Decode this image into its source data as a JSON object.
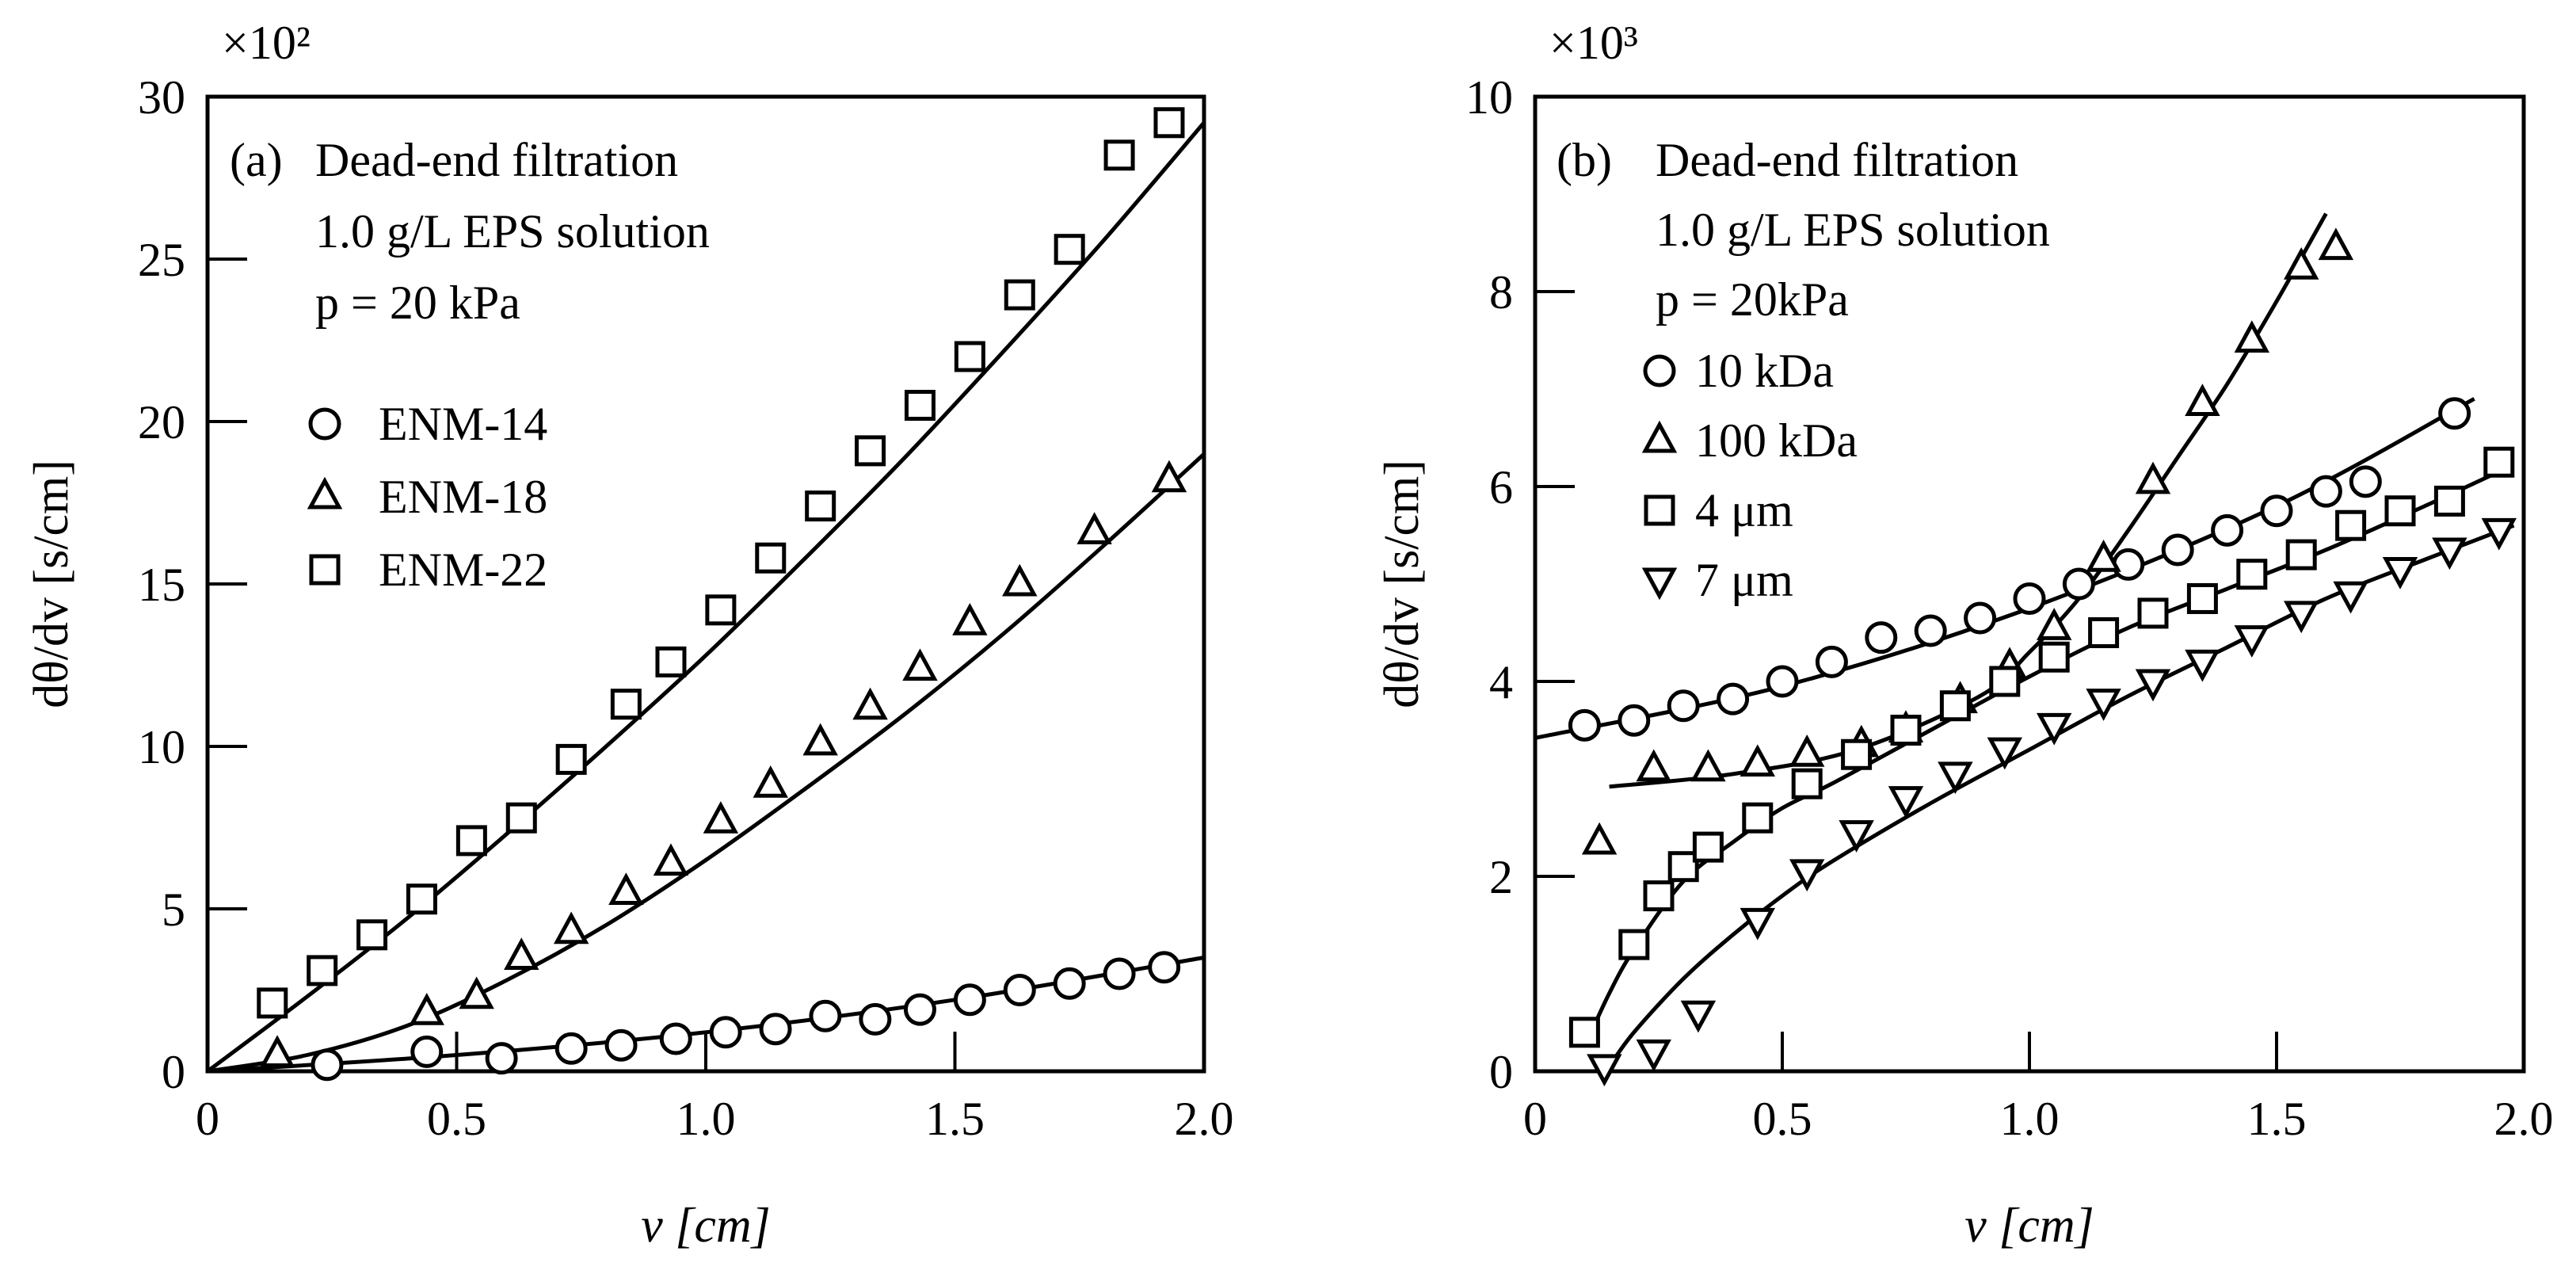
{
  "chart_data": [
    {
      "panel": "(a)",
      "type": "scatter",
      "xlabel": "v [cm]",
      "ylabel": "dθ/dv [s/cm]",
      "exponent_label": "×10²",
      "xlim": [
        0,
        2.0
      ],
      "ylim": [
        0,
        30
      ],
      "xticks": [
        0,
        0.5,
        1.0,
        1.5,
        2.0
      ],
      "xtick_labels": [
        "0",
        "0.5",
        "1.0",
        "1.5",
        "2.0"
      ],
      "yticks": [
        0,
        5,
        10,
        15,
        20,
        25,
        30
      ],
      "ytick_labels": [
        "0",
        "5",
        "10",
        "15",
        "20",
        "25",
        "30"
      ],
      "annotation": {
        "label": "(a)",
        "lines": [
          "Dead-end filtration",
          "1.0 g/L EPS solution",
          "p = 20 kPa"
        ]
      },
      "series": [
        {
          "name": "ENM-14",
          "marker": "circle",
          "x": [
            0.24,
            0.44,
            0.59,
            0.73,
            0.83,
            0.94,
            1.04,
            1.14,
            1.24,
            1.34,
            1.43,
            1.53,
            1.63,
            1.73,
            1.83,
            1.92
          ],
          "y": [
            0.2,
            0.6,
            0.4,
            0.7,
            0.8,
            1.0,
            1.2,
            1.3,
            1.7,
            1.6,
            1.9,
            2.2,
            2.5,
            2.7,
            3.0,
            3.2
          ],
          "fit_x": [
            0,
            0.5,
            1.0,
            1.5,
            2.0
          ],
          "fit_y": [
            0,
            0.5,
            1.2,
            2.2,
            3.5
          ]
        },
        {
          "name": "ENM-18",
          "marker": "triangle",
          "x": [
            0.14,
            0.44,
            0.54,
            0.63,
            0.73,
            0.84,
            0.93,
            1.03,
            1.13,
            1.23,
            1.33,
            1.43,
            1.53,
            1.63,
            1.78,
            1.93
          ],
          "y": [
            0.5,
            1.8,
            2.3,
            3.5,
            4.3,
            5.5,
            6.4,
            7.7,
            8.8,
            10.1,
            11.2,
            12.4,
            13.8,
            15.0,
            16.6,
            18.2
          ],
          "fit_x": [
            0,
            0.2,
            0.4,
            0.6,
            0.8,
            1.0,
            1.2,
            1.4,
            1.6,
            1.8,
            2.0
          ],
          "fit_y": [
            0,
            0.5,
            1.4,
            2.8,
            4.5,
            6.5,
            8.7,
            11.0,
            13.5,
            16.2,
            19.0
          ]
        },
        {
          "name": "ENM-22",
          "marker": "square",
          "x": [
            0.13,
            0.23,
            0.33,
            0.43,
            0.53,
            0.63,
            0.73,
            0.84,
            0.93,
            1.03,
            1.13,
            1.23,
            1.33,
            1.43,
            1.53,
            1.63,
            1.73,
            1.83,
            1.93
          ],
          "y": [
            2.1,
            3.1,
            4.2,
            5.3,
            7.1,
            7.8,
            9.6,
            11.3,
            12.6,
            14.2,
            15.8,
            17.4,
            19.1,
            20.5,
            22.0,
            23.9,
            25.3,
            28.2,
            29.2
          ],
          "fit_x": [
            0,
            0.2,
            0.4,
            0.6,
            0.8,
            1.0,
            1.2,
            1.4,
            1.6,
            1.8,
            2.0
          ],
          "fit_y": [
            0,
            2.3,
            4.7,
            7.3,
            10.0,
            12.8,
            15.8,
            18.9,
            22.2,
            25.6,
            29.2
          ]
        }
      ]
    },
    {
      "panel": "(b)",
      "type": "scatter",
      "xlabel": "v [cm]",
      "ylabel": "dθ/dv [s/cm]",
      "exponent_label": "×10³",
      "xlim": [
        0,
        2.0
      ],
      "ylim": [
        0,
        10
      ],
      "xticks": [
        0,
        0.5,
        1.0,
        1.5,
        2.0
      ],
      "xtick_labels": [
        "0",
        "0.5",
        "1.0",
        "1.5",
        "2.0"
      ],
      "yticks": [
        0,
        2,
        4,
        6,
        8,
        10
      ],
      "ytick_labels": [
        "0",
        "2",
        "4",
        "6",
        "8",
        "10"
      ],
      "annotation": {
        "label": "(b)",
        "lines": [
          "Dead-end filtration",
          "1.0 g/L EPS solution",
          "p = 20kPa"
        ]
      },
      "series": [
        {
          "name": "10 kDa",
          "marker": "circle",
          "x": [
            0.1,
            0.2,
            0.3,
            0.4,
            0.5,
            0.6,
            0.7,
            0.8,
            0.9,
            1.0,
            1.1,
            1.2,
            1.3,
            1.4,
            1.5,
            1.6,
            1.68,
            1.86
          ],
          "y": [
            3.55,
            3.6,
            3.75,
            3.82,
            4.0,
            4.2,
            4.45,
            4.52,
            4.65,
            4.85,
            5.0,
            5.2,
            5.35,
            5.55,
            5.75,
            5.95,
            6.05,
            6.75
          ],
          "fit_x": [
            0,
            0.5,
            1.0,
            1.5,
            1.9
          ],
          "fit_y": [
            3.42,
            3.95,
            4.75,
            5.8,
            6.9
          ]
        },
        {
          "name": "100 kDa",
          "marker": "triangle",
          "x": [
            0.13,
            0.24,
            0.35,
            0.45,
            0.55,
            0.66,
            0.75,
            0.86,
            0.96,
            1.05,
            1.15,
            1.25,
            1.35,
            1.45,
            1.55,
            1.62
          ],
          "y": [
            2.35,
            3.1,
            3.1,
            3.15,
            3.25,
            3.35,
            3.5,
            3.8,
            4.15,
            4.55,
            5.25,
            6.05,
            6.85,
            7.5,
            8.25,
            8.45
          ],
          "fit_x": [
            0.15,
            0.4,
            0.65,
            0.9,
            1.0,
            1.1,
            1.2,
            1.3,
            1.4,
            1.5,
            1.6
          ],
          "fit_y": [
            2.92,
            3.05,
            3.3,
            3.85,
            4.3,
            4.85,
            5.55,
            6.3,
            7.05,
            7.9,
            8.8
          ]
        },
        {
          "name": "4 μm",
          "marker": "square",
          "x": [
            0.1,
            0.2,
            0.25,
            0.3,
            0.35,
            0.45,
            0.55,
            0.65,
            0.75,
            0.85,
            0.95,
            1.05,
            1.15,
            1.25,
            1.35,
            1.45,
            1.55,
            1.65,
            1.75,
            1.85,
            1.95
          ],
          "y": [
            0.4,
            1.3,
            1.8,
            2.1,
            2.3,
            2.6,
            2.95,
            3.25,
            3.5,
            3.75,
            4.0,
            4.25,
            4.5,
            4.7,
            4.85,
            5.1,
            5.3,
            5.6,
            5.75,
            5.85,
            6.25
          ],
          "fit_x": [
            0.1,
            0.15,
            0.2,
            0.3,
            0.4,
            0.5,
            0.6,
            0.8,
            1.0,
            1.2,
            1.4,
            1.6,
            1.8,
            1.97
          ],
          "fit_y": [
            0.25,
            0.8,
            1.25,
            1.95,
            2.35,
            2.7,
            2.95,
            3.5,
            4.05,
            4.55,
            4.95,
            5.35,
            5.8,
            6.2
          ]
        },
        {
          "name": "7 μm",
          "marker": "triangle-down",
          "x": [
            0.14,
            0.24,
            0.33,
            0.45,
            0.55,
            0.65,
            0.75,
            0.85,
            0.95,
            1.05,
            1.15,
            1.25,
            1.35,
            1.45,
            1.55,
            1.65,
            1.75,
            1.85,
            1.95
          ],
          "y": [
            0.05,
            0.2,
            0.6,
            1.55,
            2.05,
            2.45,
            2.8,
            3.05,
            3.3,
            3.55,
            3.8,
            4.0,
            4.2,
            4.45,
            4.7,
            4.9,
            5.15,
            5.35,
            5.55
          ],
          "fit_x": [
            0.15,
            0.2,
            0.3,
            0.4,
            0.5,
            0.6,
            0.8,
            1.0,
            1.2,
            1.4,
            1.6,
            1.8,
            1.98
          ],
          "fit_y": [
            0.05,
            0.4,
            0.95,
            1.4,
            1.8,
            2.15,
            2.75,
            3.3,
            3.85,
            4.35,
            4.85,
            5.25,
            5.6
          ]
        }
      ]
    }
  ]
}
